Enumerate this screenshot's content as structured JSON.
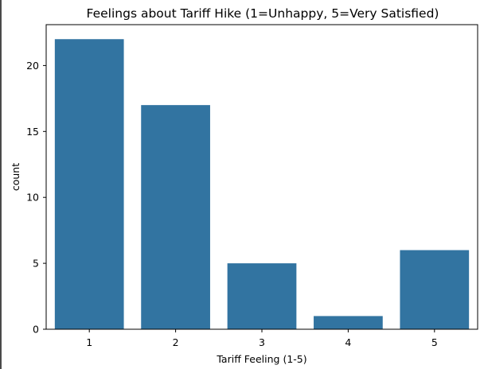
{
  "chart_data": {
    "type": "bar",
    "title": "Feelings about Tariff Hike (1=Unhappy, 5=Very Satisfied)",
    "xlabel": "Tariff Feeling (1-5)",
    "ylabel": "count",
    "categories": [
      "1",
      "2",
      "3",
      "4",
      "5"
    ],
    "values": [
      22,
      17,
      5,
      1,
      6
    ],
    "ylim": [
      0,
      23.1
    ],
    "yticks": [
      0,
      5,
      10,
      15,
      20
    ],
    "bar_color": "#3274a1",
    "grid": false,
    "legend": "none"
  }
}
